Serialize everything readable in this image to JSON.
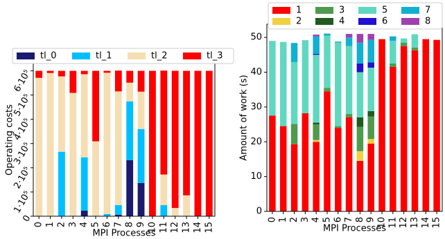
{
  "chart_data": [
    {
      "type": "stacked_bar",
      "x_label": "MPI Processes",
      "y_label": "Operating costs",
      "categories": [
        "0",
        "1",
        "2",
        "3",
        "4",
        "5",
        "6",
        "7",
        "8",
        "9",
        "10",
        "11",
        "12",
        "13",
        "14",
        "15"
      ],
      "ylim": [
        0,
        630000
      ],
      "yticks": [
        {
          "value": 0,
          "label": "0"
        },
        {
          "value": 100000,
          "label": "1·10⁵"
        },
        {
          "value": 200000,
          "label": "2·10⁵"
        },
        {
          "value": 300000,
          "label": "3·10⁵"
        },
        {
          "value": 400000,
          "label": "4·10⁵"
        },
        {
          "value": 500000,
          "label": "5·10⁵"
        },
        {
          "value": 600000,
          "label": "6·10⁵"
        }
      ],
      "legend_columns": 4,
      "series": [
        {
          "name": "tl_0",
          "color": "#1a1a6e",
          "values": [
            0,
            0,
            0,
            0,
            23000,
            0,
            0,
            6000,
            231000,
            137000,
            0,
            0,
            0,
            0,
            0,
            0
          ]
        },
        {
          "name": "tl_1",
          "color": "#00bfff",
          "values": [
            0,
            0,
            266000,
            0,
            220000,
            0,
            9000,
            40000,
            243000,
            223000,
            0,
            46000,
            0,
            0,
            0,
            0
          ]
        },
        {
          "name": "tl_2",
          "color": "#f5deb3",
          "values": [
            571000,
            591000,
            311000,
            509000,
            343000,
            309000,
            583000,
            469000,
            77000,
            154000,
            0,
            126000,
            34000,
            86000,
            0,
            0
          ]
        },
        {
          "name": "tl_3",
          "color": "#ff0000",
          "values": [
            29000,
            9000,
            23000,
            91000,
            14000,
            291000,
            8000,
            86000,
            49000,
            86000,
            600000,
            429000,
            566000,
            514000,
            600000,
            600000
          ]
        }
      ]
    },
    {
      "type": "stacked_bar",
      "x_label": "MPI Processes",
      "y_label": "Amount of work (s)",
      "categories": [
        "0",
        "1",
        "2",
        "3",
        "4",
        "5",
        "6",
        "7",
        "8",
        "9",
        "10",
        "11",
        "12",
        "13",
        "14",
        "15"
      ],
      "ylim": [
        0,
        53.8
      ],
      "yticks": [
        0,
        10,
        20,
        30,
        40,
        50
      ],
      "legend_columns": 4,
      "series": [
        {
          "name": "1",
          "color": "#ff0000",
          "values": [
            27.5,
            24.5,
            19.3,
            28.2,
            20,
            34.5,
            24,
            27,
            14.5,
            19.5,
            49.5,
            41.5,
            47.5,
            46.3,
            49.5,
            49.3
          ]
        },
        {
          "name": "2",
          "color": "#f0d040",
          "values": [
            0,
            0,
            0,
            0,
            0.5,
            0,
            0,
            0,
            2.8,
            1.3,
            0,
            0,
            0,
            0,
            0,
            0
          ]
        },
        {
          "name": "3",
          "color": "#4f9a4f",
          "values": [
            0,
            0,
            5.8,
            0,
            4.5,
            1,
            0.5,
            1,
            7,
            6.5,
            0,
            1,
            1,
            0.8,
            0,
            0
          ]
        },
        {
          "name": "4",
          "color": "#1f5a1f",
          "values": [
            0,
            0,
            0,
            0,
            0.5,
            0,
            0,
            0,
            2.7,
            1.5,
            0,
            0,
            0,
            0,
            0,
            0
          ]
        },
        {
          "name": "5",
          "color": "#60d8c0",
          "values": [
            21.5,
            24.2,
            17.8,
            21,
            19.5,
            15,
            24,
            19.5,
            13,
            12.5,
            0,
            6.5,
            1.2,
            3.8,
            0,
            0
          ]
        },
        {
          "name": "6",
          "color": "#2010d0",
          "values": [
            0,
            0,
            0,
            0,
            0.3,
            0,
            0,
            0,
            2.5,
            1.5,
            0,
            0,
            0,
            0,
            0,
            0
          ]
        },
        {
          "name": "7",
          "color": "#10b0d0",
          "values": [
            0,
            0,
            5.5,
            0,
            5,
            0.6,
            0.3,
            2.5,
            6,
            6.5,
            0,
            1.3,
            0,
            0,
            0,
            0
          ]
        },
        {
          "name": "8",
          "color": "#a040b0",
          "values": [
            0,
            0,
            0,
            0,
            0.5,
            0,
            0,
            1,
            2.5,
            1.7,
            0,
            0,
            0,
            0,
            0,
            0
          ]
        }
      ]
    }
  ]
}
